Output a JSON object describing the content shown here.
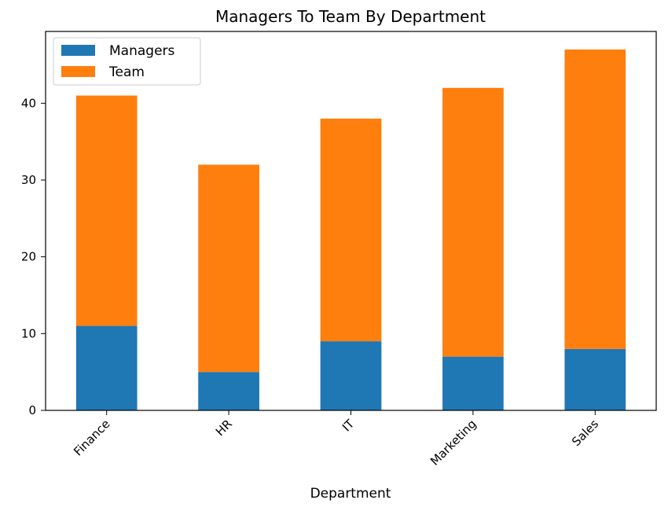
{
  "chart_data": {
    "type": "bar",
    "stacked": true,
    "title": "Managers To Team By Department",
    "xlabel": "Department",
    "ylabel": "",
    "categories": [
      "Finance",
      "HR",
      "IT",
      "Marketing",
      "Sales"
    ],
    "series": [
      {
        "name": "Managers",
        "values": [
          11,
          5,
          9,
          7,
          8
        ],
        "color": "#1f77b4"
      },
      {
        "name": "Team",
        "values": [
          30,
          27,
          29,
          35,
          39
        ],
        "color": "#ff7f0e"
      }
    ],
    "ylim": [
      0,
      49.35
    ],
    "yticks": [
      0,
      10,
      20,
      30,
      40
    ],
    "grid": false,
    "legend_position": "top-left",
    "xtick_rotation": 45
  }
}
